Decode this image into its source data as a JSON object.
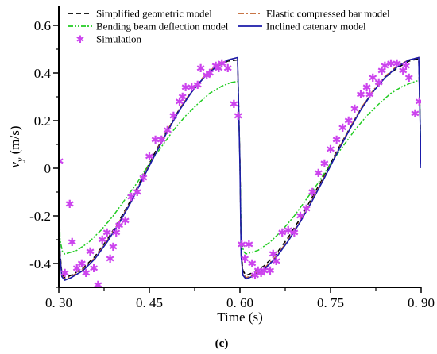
{
  "chart_data": {
    "type": "line",
    "title": "",
    "caption": "(c)",
    "xlabel": "Time (s)",
    "ylabel": {
      "base": "v",
      "sub": "y",
      "rest": " (m/s)"
    },
    "xlim": [
      0.3,
      0.9
    ],
    "ylim": [
      -0.5,
      0.68
    ],
    "xticks": [
      0.3,
      0.45,
      0.6,
      0.75,
      0.9
    ],
    "xtick_labels": [
      "0. 30",
      "0. 45",
      "0. 60",
      "0. 75",
      "0. 90"
    ],
    "yticks": [
      -0.4,
      -0.2,
      0,
      0.2,
      0.4,
      0.6
    ],
    "ytick_labels": [
      "-0.4",
      "-0.2",
      "0",
      "0.2",
      "0.4",
      "0.6"
    ],
    "grid": false,
    "legend_position": "top",
    "series": [
      {
        "name": "Simplified geometric model",
        "color": "#000000",
        "style": "dash",
        "points": [
          [
            0.3,
            0.02
          ],
          [
            0.302,
            -0.35
          ],
          [
            0.305,
            -0.44
          ],
          [
            0.31,
            -0.46
          ],
          [
            0.32,
            -0.45
          ],
          [
            0.34,
            -0.42
          ],
          [
            0.36,
            -0.37
          ],
          [
            0.38,
            -0.3
          ],
          [
            0.4,
            -0.22
          ],
          [
            0.42,
            -0.13
          ],
          [
            0.44,
            -0.03
          ],
          [
            0.46,
            0.07
          ],
          [
            0.48,
            0.16
          ],
          [
            0.5,
            0.25
          ],
          [
            0.52,
            0.32
          ],
          [
            0.54,
            0.38
          ],
          [
            0.56,
            0.425
          ],
          [
            0.58,
            0.45
          ],
          [
            0.596,
            0.455
          ],
          [
            0.6,
            0.03
          ],
          [
            0.602,
            -0.35
          ],
          [
            0.605,
            -0.43
          ],
          [
            0.61,
            -0.45
          ],
          [
            0.62,
            -0.44
          ],
          [
            0.64,
            -0.41
          ],
          [
            0.66,
            -0.36
          ],
          [
            0.68,
            -0.29
          ],
          [
            0.7,
            -0.21
          ],
          [
            0.72,
            -0.12
          ],
          [
            0.74,
            -0.03
          ],
          [
            0.76,
            0.07
          ],
          [
            0.78,
            0.16
          ],
          [
            0.8,
            0.25
          ],
          [
            0.82,
            0.32
          ],
          [
            0.84,
            0.38
          ],
          [
            0.86,
            0.42
          ],
          [
            0.88,
            0.45
          ],
          [
            0.896,
            0.46
          ],
          [
            0.9,
            0.03
          ]
        ]
      },
      {
        "name": "Elastic compressed bar model",
        "color": "#c0622d",
        "style": "dashdot",
        "points": [
          [
            0.3,
            0.0
          ],
          [
            0.302,
            -0.36
          ],
          [
            0.305,
            -0.45
          ],
          [
            0.31,
            -0.465
          ],
          [
            0.32,
            -0.455
          ],
          [
            0.34,
            -0.425
          ],
          [
            0.36,
            -0.375
          ],
          [
            0.38,
            -0.305
          ],
          [
            0.4,
            -0.225
          ],
          [
            0.42,
            -0.135
          ],
          [
            0.44,
            -0.035
          ],
          [
            0.46,
            0.065
          ],
          [
            0.48,
            0.16
          ],
          [
            0.5,
            0.25
          ],
          [
            0.52,
            0.325
          ],
          [
            0.54,
            0.385
          ],
          [
            0.56,
            0.43
          ],
          [
            0.58,
            0.455
          ],
          [
            0.596,
            0.465
          ],
          [
            0.6,
            0.02
          ],
          [
            0.602,
            -0.36
          ],
          [
            0.605,
            -0.44
          ],
          [
            0.61,
            -0.46
          ],
          [
            0.62,
            -0.45
          ],
          [
            0.64,
            -0.42
          ],
          [
            0.66,
            -0.37
          ],
          [
            0.68,
            -0.3
          ],
          [
            0.7,
            -0.22
          ],
          [
            0.72,
            -0.13
          ],
          [
            0.74,
            -0.035
          ],
          [
            0.76,
            0.065
          ],
          [
            0.78,
            0.16
          ],
          [
            0.8,
            0.25
          ],
          [
            0.82,
            0.325
          ],
          [
            0.84,
            0.385
          ],
          [
            0.86,
            0.43
          ],
          [
            0.88,
            0.455
          ],
          [
            0.896,
            0.465
          ],
          [
            0.9,
            0.02
          ]
        ]
      },
      {
        "name": "Bending beam deflection model",
        "color": "#22cc22",
        "style": "dashdotdot",
        "points": [
          [
            0.3,
            0.0
          ],
          [
            0.302,
            -0.3
          ],
          [
            0.306,
            -0.35
          ],
          [
            0.31,
            -0.36
          ],
          [
            0.33,
            -0.345
          ],
          [
            0.35,
            -0.31
          ],
          [
            0.37,
            -0.26
          ],
          [
            0.39,
            -0.2
          ],
          [
            0.41,
            -0.13
          ],
          [
            0.43,
            -0.06
          ],
          [
            0.45,
            0.02
          ],
          [
            0.47,
            0.09
          ],
          [
            0.49,
            0.16
          ],
          [
            0.51,
            0.22
          ],
          [
            0.53,
            0.27
          ],
          [
            0.55,
            0.315
          ],
          [
            0.57,
            0.345
          ],
          [
            0.585,
            0.36
          ],
          [
            0.597,
            0.365
          ],
          [
            0.6,
            0.02
          ],
          [
            0.602,
            -0.3
          ],
          [
            0.606,
            -0.35
          ],
          [
            0.61,
            -0.36
          ],
          [
            0.63,
            -0.345
          ],
          [
            0.65,
            -0.31
          ],
          [
            0.67,
            -0.26
          ],
          [
            0.69,
            -0.2
          ],
          [
            0.71,
            -0.13
          ],
          [
            0.73,
            -0.06
          ],
          [
            0.75,
            0.02
          ],
          [
            0.77,
            0.09
          ],
          [
            0.79,
            0.16
          ],
          [
            0.81,
            0.22
          ],
          [
            0.83,
            0.27
          ],
          [
            0.85,
            0.315
          ],
          [
            0.87,
            0.345
          ],
          [
            0.885,
            0.36
          ],
          [
            0.897,
            0.37
          ],
          [
            0.9,
            0.02
          ]
        ]
      },
      {
        "name": "Inclined catenary model",
        "color": "#1a1aaa",
        "style": "solid",
        "points": [
          [
            0.3,
            0.0
          ],
          [
            0.302,
            -0.37
          ],
          [
            0.305,
            -0.455
          ],
          [
            0.31,
            -0.47
          ],
          [
            0.32,
            -0.46
          ],
          [
            0.34,
            -0.43
          ],
          [
            0.36,
            -0.38
          ],
          [
            0.38,
            -0.31
          ],
          [
            0.4,
            -0.23
          ],
          [
            0.42,
            -0.14
          ],
          [
            0.44,
            -0.04
          ],
          [
            0.46,
            0.06
          ],
          [
            0.48,
            0.155
          ],
          [
            0.5,
            0.245
          ],
          [
            0.52,
            0.32
          ],
          [
            0.54,
            0.38
          ],
          [
            0.56,
            0.425
          ],
          [
            0.58,
            0.455
          ],
          [
            0.596,
            0.465
          ],
          [
            0.6,
            0.01
          ],
          [
            0.602,
            -0.37
          ],
          [
            0.605,
            -0.45
          ],
          [
            0.61,
            -0.465
          ],
          [
            0.62,
            -0.455
          ],
          [
            0.64,
            -0.425
          ],
          [
            0.66,
            -0.375
          ],
          [
            0.68,
            -0.305
          ],
          [
            0.7,
            -0.225
          ],
          [
            0.72,
            -0.135
          ],
          [
            0.74,
            -0.04
          ],
          [
            0.76,
            0.06
          ],
          [
            0.78,
            0.155
          ],
          [
            0.8,
            0.245
          ],
          [
            0.82,
            0.32
          ],
          [
            0.84,
            0.38
          ],
          [
            0.86,
            0.425
          ],
          [
            0.88,
            0.455
          ],
          [
            0.896,
            0.465
          ],
          [
            0.9,
            0.0
          ]
        ]
      },
      {
        "name": "Simulation",
        "color": "#cc44ee",
        "style": "marker",
        "points": [
          [
            0.301,
            0.03
          ],
          [
            0.31,
            -0.44
          ],
          [
            0.318,
            -0.15
          ],
          [
            0.322,
            -0.31
          ],
          [
            0.33,
            -0.42
          ],
          [
            0.338,
            -0.4
          ],
          [
            0.345,
            -0.44
          ],
          [
            0.352,
            -0.35
          ],
          [
            0.358,
            -0.42
          ],
          [
            0.365,
            -0.49
          ],
          [
            0.372,
            -0.3
          ],
          [
            0.38,
            -0.27
          ],
          [
            0.385,
            -0.38
          ],
          [
            0.39,
            -0.33
          ],
          [
            0.395,
            -0.27
          ],
          [
            0.4,
            -0.24
          ],
          [
            0.41,
            -0.22
          ],
          [
            0.42,
            -0.12
          ],
          [
            0.43,
            -0.1
          ],
          [
            0.44,
            -0.04
          ],
          [
            0.45,
            0.05
          ],
          [
            0.46,
            0.12
          ],
          [
            0.47,
            0.12
          ],
          [
            0.48,
            0.16
          ],
          [
            0.49,
            0.22
          ],
          [
            0.5,
            0.28
          ],
          [
            0.505,
            0.3
          ],
          [
            0.51,
            0.34
          ],
          [
            0.52,
            0.34
          ],
          [
            0.53,
            0.35
          ],
          [
            0.535,
            0.42
          ],
          [
            0.545,
            0.39
          ],
          [
            0.55,
            0.4
          ],
          [
            0.56,
            0.43
          ],
          [
            0.565,
            0.42
          ],
          [
            0.57,
            0.44
          ],
          [
            0.58,
            0.42
          ],
          [
            0.59,
            0.27
          ],
          [
            0.597,
            0.22
          ],
          [
            0.603,
            -0.32
          ],
          [
            0.608,
            -0.38
          ],
          [
            0.615,
            -0.32
          ],
          [
            0.62,
            -0.4
          ],
          [
            0.625,
            -0.45
          ],
          [
            0.63,
            -0.43
          ],
          [
            0.635,
            -0.44
          ],
          [
            0.64,
            -0.43
          ],
          [
            0.65,
            -0.43
          ],
          [
            0.655,
            -0.36
          ],
          [
            0.66,
            -0.39
          ],
          [
            0.67,
            -0.27
          ],
          [
            0.68,
            -0.26
          ],
          [
            0.69,
            -0.27
          ],
          [
            0.7,
            -0.2
          ],
          [
            0.71,
            -0.17
          ],
          [
            0.72,
            -0.1
          ],
          [
            0.73,
            -0.02
          ],
          [
            0.74,
            0.02
          ],
          [
            0.75,
            0.08
          ],
          [
            0.76,
            0.12
          ],
          [
            0.77,
            0.17
          ],
          [
            0.78,
            0.2
          ],
          [
            0.79,
            0.25
          ],
          [
            0.8,
            0.31
          ],
          [
            0.81,
            0.34
          ],
          [
            0.815,
            0.31
          ],
          [
            0.82,
            0.38
          ],
          [
            0.83,
            0.36
          ],
          [
            0.835,
            0.41
          ],
          [
            0.84,
            0.43
          ],
          [
            0.85,
            0.44
          ],
          [
            0.86,
            0.44
          ],
          [
            0.87,
            0.41
          ],
          [
            0.875,
            0.43
          ],
          [
            0.88,
            0.38
          ],
          [
            0.89,
            0.23
          ],
          [
            0.897,
            0.28
          ]
        ]
      }
    ]
  }
}
